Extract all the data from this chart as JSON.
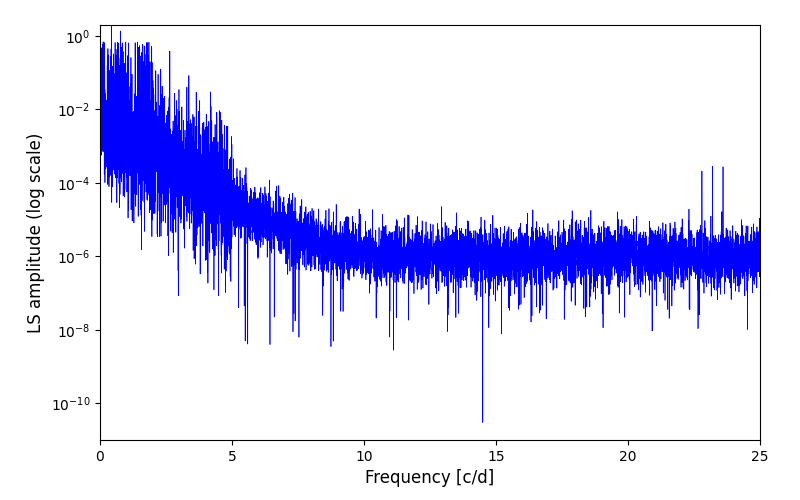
{
  "title": "",
  "xlabel": "Frequency [c/d]",
  "ylabel": "LS amplitude (log scale)",
  "xlim": [
    0,
    25
  ],
  "ylim": [
    1e-11,
    2.0
  ],
  "yticks": [
    1e-10,
    1e-08,
    1e-06,
    0.0001,
    0.01,
    1.0
  ],
  "xticks": [
    0,
    5,
    10,
    15,
    20,
    25
  ],
  "line_color": "#0000FF",
  "line_width": 0.5,
  "background_color": "#FFFFFF",
  "seed": 42,
  "n_points": 8000,
  "freq_max": 25.0
}
